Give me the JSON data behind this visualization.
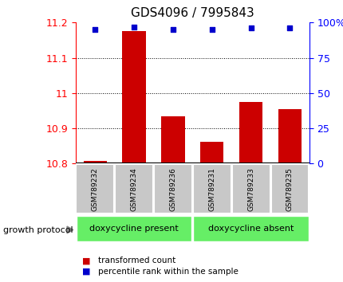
{
  "title": "GDS4096 / 7995843",
  "samples": [
    "GSM789232",
    "GSM789234",
    "GSM789236",
    "GSM789231",
    "GSM789233",
    "GSM789235"
  ],
  "red_values": [
    10.807,
    11.175,
    10.935,
    10.862,
    10.975,
    10.955
  ],
  "blue_values": [
    95,
    97,
    95,
    95,
    96,
    96
  ],
  "ylim_left": [
    10.8,
    11.2
  ],
  "ylim_right": [
    0,
    100
  ],
  "yticks_left": [
    10.8,
    10.9,
    11.0,
    11.1,
    11.2
  ],
  "yticks_right": [
    0,
    25,
    50,
    75,
    100
  ],
  "group1_label": "doxycycline present",
  "group2_label": "doxycycline absent",
  "group1_indices": [
    0,
    1,
    2
  ],
  "group2_indices": [
    3,
    4,
    5
  ],
  "protocol_label": "growth protocol",
  "legend_red": "transformed count",
  "legend_blue": "percentile rank within the sample",
  "bar_color": "#cc0000",
  "dot_color": "#0000cc",
  "group_color": "#66ee66",
  "sample_box_color": "#c8c8c8",
  "bar_bottom": 10.8,
  "bar_width": 0.6,
  "ytick_labels_left": [
    "10.8",
    "10.9",
    "11",
    "11.1",
    "11.2"
  ],
  "ytick_labels_right": [
    "0",
    "25",
    "50",
    "75",
    "100%"
  ]
}
